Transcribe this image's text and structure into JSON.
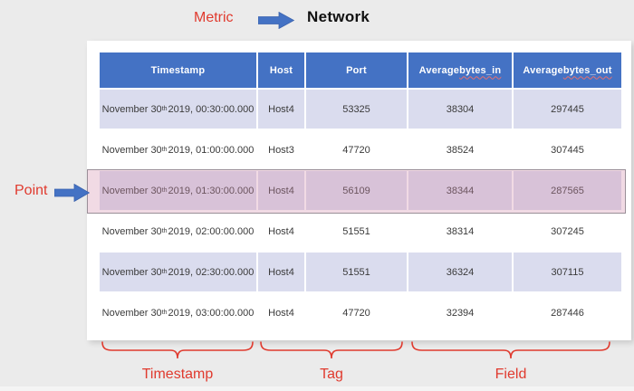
{
  "annotations": {
    "metric_label": "Metric",
    "metric_value": "Network",
    "point_label": "Point",
    "timestamp_group_label": "Timestamp",
    "tag_group_label": "Tag",
    "field_group_label": "Field"
  },
  "colors": {
    "annotation_red": "#e03a2e",
    "arrow_blue": "#4472c4",
    "header_bg": "#4472c4",
    "row_band": "#dadcee",
    "highlight_fill": "rgba(213,141,170,0.32)",
    "highlight_border": "#9a8f98",
    "page_bg": "#ebebeb"
  },
  "table": {
    "columns": [
      "Timestamp",
      "Host",
      "Port",
      "Average bytes_in",
      "Average bytes_out"
    ],
    "rows": [
      {
        "timestamp": "November 30th 2019, 00:30:00.000",
        "host": "Host4",
        "port": "53325",
        "avg_bytes_in": "38304",
        "avg_bytes_out": "297445",
        "highlighted": false
      },
      {
        "timestamp": "November 30th 2019, 01:00:00.000",
        "host": "Host3",
        "port": "47720",
        "avg_bytes_in": "38524",
        "avg_bytes_out": "307445",
        "highlighted": false
      },
      {
        "timestamp": "November 30th 2019, 01:30:00.000",
        "host": "Host4",
        "port": "56109",
        "avg_bytes_in": "38344",
        "avg_bytes_out": "287565",
        "highlighted": true
      },
      {
        "timestamp": "November 30th 2019, 02:00:00.000",
        "host": "Host4",
        "port": "51551",
        "avg_bytes_in": "38314",
        "avg_bytes_out": "307245",
        "highlighted": false
      },
      {
        "timestamp": "November 30th 2019, 02:30:00.000",
        "host": "Host4",
        "port": "51551",
        "avg_bytes_in": "36324",
        "avg_bytes_out": "307115",
        "highlighted": false
      },
      {
        "timestamp": "November 30th 2019, 03:00:00.000",
        "host": "Host4",
        "port": "47720",
        "avg_bytes_in": "32394",
        "avg_bytes_out": "287446",
        "highlighted": false
      }
    ]
  }
}
